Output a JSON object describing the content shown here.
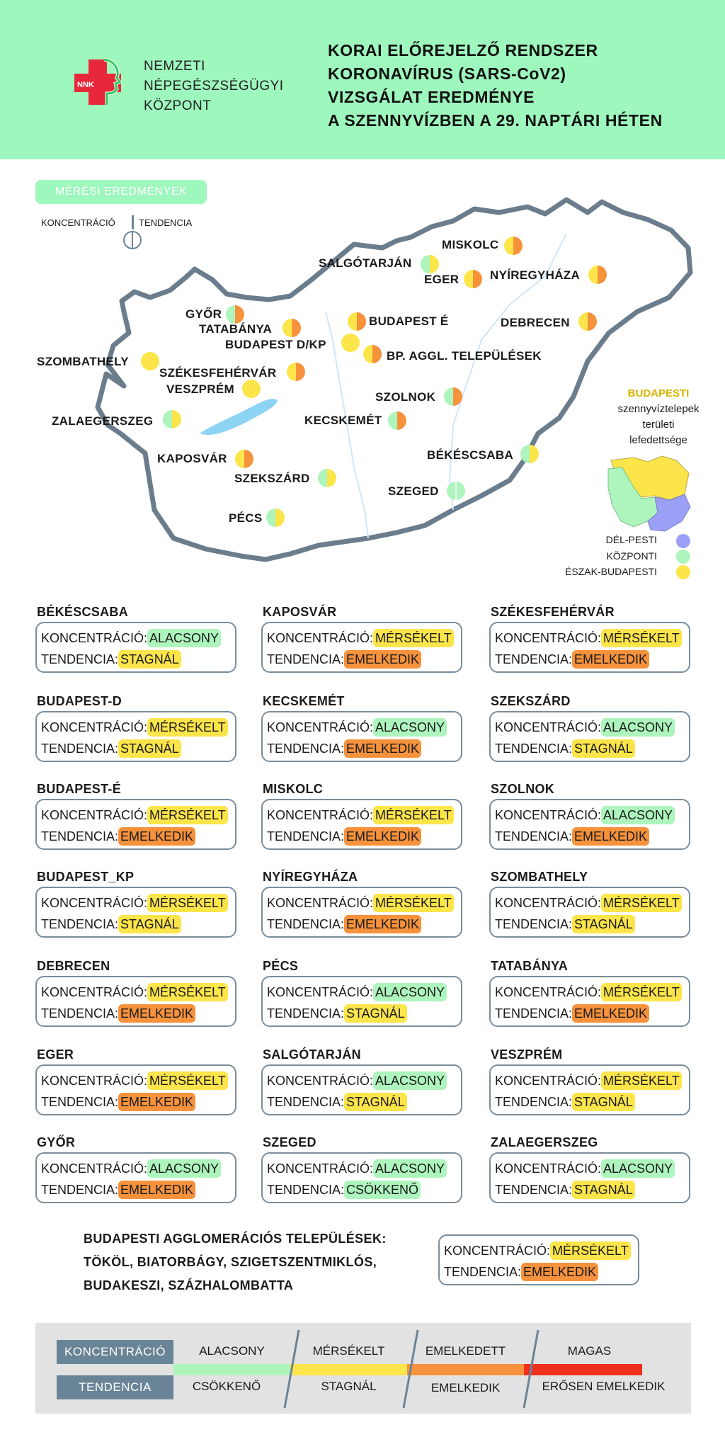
{
  "header": {
    "org": [
      "NEMZETI",
      "NÉPEGÉSZSÉGÜGYI",
      "KÖZPONT"
    ],
    "logo_text": "NNK",
    "title": [
      "KORAI ELŐREJELZŐ RENDSZER",
      "KORONAVÍRUS (SARS-CoV2)",
      "VIZSGÁLAT EREDMÉNYE",
      "A SZENNYVÍZBEN A 29. NAPTÁRI HÉTEN"
    ]
  },
  "legend": {
    "section_label": "MÉRÉSI EREDMÉNYEK",
    "concentration": "KONCENTRÁCIÓ",
    "tendency": "TENDENCIA"
  },
  "colors": {
    "alacsony": "#aef5bd",
    "merseklet": "#fce54a",
    "emelkedett": "#f6923c",
    "magas": "#f0301f",
    "stagnal": "#fce54a",
    "emelkedik": "#f6923c",
    "csokkeno": "#aef5bd",
    "border": "#7b8c99",
    "map_outline": "#6b7d8c"
  },
  "map_cities": {
    "miskolc": "MISKOLC",
    "salgotarjan": "SALGÓTARJÁN",
    "eger": "EGER",
    "nyiregyhaza": "NYÍREGYHÁZA",
    "gyor": "GYŐR",
    "tatabanya": "TATABÁNYA",
    "budapest_e": "BUDAPEST É",
    "budapest_dkp": "BUDAPEST D/KP",
    "bp_aggl": "BP. AGGL. TELEPÜLÉSEK",
    "debrecen": "DEBRECEN",
    "szombathely": "SZOMBATHELY",
    "szekesfehervar": "SZÉKESFEHÉRVÁR",
    "veszprem": "VESZPRÉM",
    "szolnok": "SZOLNOK",
    "zalaegerszeg": "ZALAEGERSZEG",
    "kecskemet": "KECSKEMÉT",
    "bekescsaba": "BÉKÉSCSABA",
    "kaposvar": "KAPOSVÁR",
    "szekszard": "SZEKSZÁRD",
    "szeged": "SZEGED",
    "pecs": "PÉCS"
  },
  "budapest": {
    "label": [
      "BUDAPESTI",
      "szennyvíztelepek",
      "területi",
      "lefedettsége"
    ],
    "legend": [
      "DÉL-PESTI",
      "KÖZPONTI",
      "ÉSZAK-BUDAPESTI"
    ]
  },
  "cards": [
    {
      "title": "BÉKÉSCSABA",
      "k_label": "KONCENTRÁCIÓ:",
      "k": "ALACSONY",
      "t_label": "TENDENCIA:",
      "t": "STAGNÁL"
    },
    {
      "title": "KAPOSVÁR",
      "k_label": "KONCENTRÁCIÓ:",
      "k": "MÉRSÉKELT",
      "t_label": "TENDENCIA:",
      "t": "EMELKEDIK"
    },
    {
      "title": "SZÉKESFEHÉRVÁR",
      "k_label": "KONCENTRÁCIÓ:",
      "k": "MÉRSÉKELT",
      "t_label": "TENDENCIA:",
      "t": "EMELKEDIK"
    },
    {
      "title": "BUDAPEST-D",
      "k_label": "KONCENTRÁCIÓ:",
      "k": "MÉRSÉKELT",
      "t_label": "TENDENCIA:",
      "t": "STAGNÁL"
    },
    {
      "title": "KECSKEMÉT",
      "k_label": "KONCENTRÁCIÓ:",
      "k": "ALACSONY",
      "t_label": "TENDENCIA:",
      "t": "EMELKEDIK"
    },
    {
      "title": "SZEKSZÁRD",
      "k_label": "KONCENTRÁCIÓ:",
      "k": "ALACSONY",
      "t_label": "TENDENCIA:",
      "t": "STAGNÁL"
    },
    {
      "title": "BUDAPEST-É",
      "k_label": "KONCENTRÁCIÓ:",
      "k": "MÉRSÉKELT",
      "t_label": "TENDENCIA:",
      "t": "EMELKEDIK"
    },
    {
      "title": "MISKOLC",
      "k_label": "KONCENTRÁCIÓ:",
      "k": "MÉRSÉKELT",
      "t_label": "TENDENCIA:",
      "t": "EMELKEDIK"
    },
    {
      "title": "SZOLNOK",
      "k_label": "KONCENTRÁCIÓ:",
      "k": "ALACSONY",
      "t_label": "TENDENCIA:",
      "t": "EMELKEDIK"
    },
    {
      "title": "BUDAPEST_KP",
      "k_label": "KONCENTRÁCIÓ:",
      "k": "MÉRSÉKELT",
      "t_label": "TENDENCIA:",
      "t": "STAGNÁL"
    },
    {
      "title": "NYÍREGYHÁZA",
      "k_label": "KONCENTRÁCIÓ:",
      "k": "MÉRSÉKELT",
      "t_label": "TENDENCIA:",
      "t": "EMELKEDIK"
    },
    {
      "title": "SZOMBATHELY",
      "k_label": "KONCENTRÁCIÓ:",
      "k": "MÉRSÉKELT",
      "t_label": "TENDENCIA:",
      "t": "STAGNÁL"
    },
    {
      "title": "DEBRECEN",
      "k_label": "KONCENTRÁCIÓ:",
      "k": "MÉRSÉKELT",
      "t_label": "TENDENCIA:",
      "t": "EMELKEDIK"
    },
    {
      "title": "PÉCS",
      "k_label": "KONCENTRÁCIÓ:",
      "k": "ALACSONY",
      "t_label": "TENDENCIA:",
      "t": "STAGNÁL"
    },
    {
      "title": "TATABÁNYA",
      "k_label": "KONCENTRÁCIÓ:",
      "k": "MÉRSÉKELT",
      "t_label": "TENDENCIA:",
      "t": "EMELKEDIK"
    },
    {
      "title": "EGER",
      "k_label": "KONCENTRÁCIÓ:",
      "k": "MÉRSÉKELT",
      "t_label": "TENDENCIA:",
      "t": "EMELKEDIK"
    },
    {
      "title": "SALGÓTARJÁN",
      "k_label": "KONCENTRÁCIÓ:",
      "k": "ALACSONY",
      "t_label": "TENDENCIA:",
      "t": "STAGNÁL"
    },
    {
      "title": "VESZPRÉM",
      "k_label": "KONCENTRÁCIÓ:",
      "k": "MÉRSÉKELT",
      "t_label": "TENDENCIA:",
      "t": "STAGNÁL"
    },
    {
      "title": "GYŐR",
      "k_label": "KONCENTRÁCIÓ:",
      "k": "ALACSONY",
      "t_label": "TENDENCIA:",
      "t": "EMELKEDIK"
    },
    {
      "title": "SZEGED",
      "k_label": "KONCENTRÁCIÓ:",
      "k": "ALACSONY",
      "t_label": "TENDENCIA:",
      "t": "CSÖKKENŐ"
    },
    {
      "title": "ZALAEGERSZEG",
      "k_label": "KONCENTRÁCIÓ:",
      "k": "ALACSONY",
      "t_label": "TENDENCIA:",
      "t": "STAGNÁL"
    }
  ],
  "agglo": {
    "lines": [
      "BUDAPESTI AGGLOMERÁCIÓS TELEPÜLÉSEK:",
      "TÖKÖL, BIATORBÁGY, SZIGETSZENTMIKLÓS,",
      "BUDAKESZI, SZÁZHALOMBATTA"
    ],
    "k_label": "KONCENTRÁCIÓ:",
    "k": "MÉRSÉKELT",
    "t_label": "TENDENCIA:",
    "t": "EMELKEDIK"
  },
  "scale": {
    "konc_label": "KONCENTRÁCIÓ",
    "tend_label": "TENDENCIA",
    "konc": [
      "ALACSONY",
      "MÉRSÉKELT",
      "EMELKEDETT",
      "MAGAS"
    ],
    "tend": [
      "CSÖKKENŐ",
      "STAGNÁL",
      "EMELKEDIK",
      "ERŐSEN EMELKEDIK"
    ]
  }
}
